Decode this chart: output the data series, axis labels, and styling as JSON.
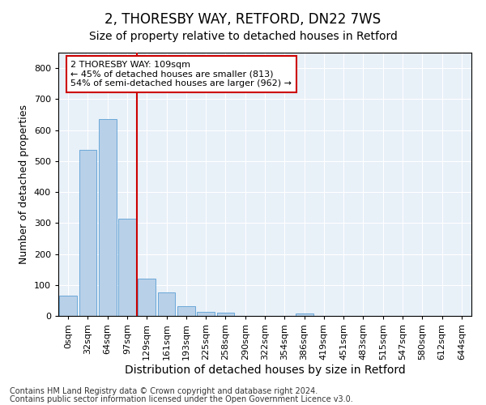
{
  "title": "2, THORESBY WAY, RETFORD, DN22 7WS",
  "subtitle": "Size of property relative to detached houses in Retford",
  "xlabel": "Distribution of detached houses by size in Retford",
  "ylabel": "Number of detached properties",
  "bar_color": "#b8d0e8",
  "bar_edge_color": "#5a9fd4",
  "bg_color": "#e8f0f8",
  "grid_color": "#ffffff",
  "vline_color": "#cc0000",
  "vline_x": 3.5,
  "annotation_text": "2 THORESBY WAY: 109sqm\n← 45% of detached houses are smaller (813)\n54% of semi-detached houses are larger (962) →",
  "annotation_box_color": "#ffffff",
  "annotation_box_edge": "#cc0000",
  "categories": [
    "0sqm",
    "32sqm",
    "64sqm",
    "97sqm",
    "129sqm",
    "161sqm",
    "193sqm",
    "225sqm",
    "258sqm",
    "290sqm",
    "322sqm",
    "354sqm",
    "386sqm",
    "419sqm",
    "451sqm",
    "483sqm",
    "515sqm",
    "547sqm",
    "580sqm",
    "612sqm",
    "644sqm"
  ],
  "values": [
    65,
    535,
    635,
    315,
    120,
    75,
    32,
    13,
    10,
    0,
    0,
    0,
    8,
    0,
    0,
    0,
    0,
    0,
    0,
    0,
    0
  ],
  "ylim": [
    0,
    850
  ],
  "yticks": [
    0,
    100,
    200,
    300,
    400,
    500,
    600,
    700,
    800
  ],
  "footnote1": "Contains HM Land Registry data © Crown copyright and database right 2024.",
  "footnote2": "Contains public sector information licensed under the Open Government Licence v3.0.",
  "title_fontsize": 12,
  "subtitle_fontsize": 10,
  "xlabel_fontsize": 10,
  "ylabel_fontsize": 9,
  "tick_fontsize": 8,
  "annot_fontsize": 8,
  "footnote_fontsize": 7
}
